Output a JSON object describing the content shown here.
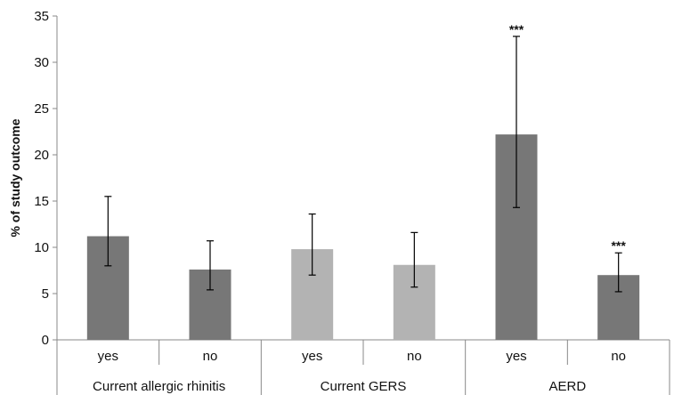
{
  "chart_data": {
    "type": "bar",
    "ylabel": "% of study outcome",
    "ylim": [
      0,
      35
    ],
    "yticks": [
      0,
      5,
      10,
      15,
      20,
      25,
      30,
      35
    ],
    "grid": false,
    "groups": [
      {
        "label": "Current allergic rhinitis",
        "categories": [
          "yes",
          "no"
        ]
      },
      {
        "label": "Current GERS",
        "categories": [
          "yes",
          "no"
        ]
      },
      {
        "label": "AERD",
        "categories": [
          "yes",
          "no"
        ]
      }
    ],
    "bars": [
      {
        "group": "Current allergic rhinitis",
        "category": "yes",
        "value": 11.2,
        "ci_low": 8.0,
        "ci_high": 15.5,
        "annotation": "",
        "color": "#777777"
      },
      {
        "group": "Current allergic rhinitis",
        "category": "no",
        "value": 7.6,
        "ci_low": 5.4,
        "ci_high": 10.7,
        "annotation": "",
        "color": "#777777"
      },
      {
        "group": "Current GERS",
        "category": "yes",
        "value": 9.8,
        "ci_low": 7.0,
        "ci_high": 13.6,
        "annotation": "",
        "color": "#b3b3b3"
      },
      {
        "group": "Current GERS",
        "category": "no",
        "value": 8.1,
        "ci_low": 5.7,
        "ci_high": 11.6,
        "annotation": "",
        "color": "#b3b3b3"
      },
      {
        "group": "AERD",
        "category": "yes",
        "value": 22.2,
        "ci_low": 14.3,
        "ci_high": 32.8,
        "annotation": "***",
        "color": "#777777"
      },
      {
        "group": "AERD",
        "category": "no",
        "value": 7.0,
        "ci_low": 5.2,
        "ci_high": 9.4,
        "annotation": "***",
        "color": "#777777"
      }
    ]
  }
}
